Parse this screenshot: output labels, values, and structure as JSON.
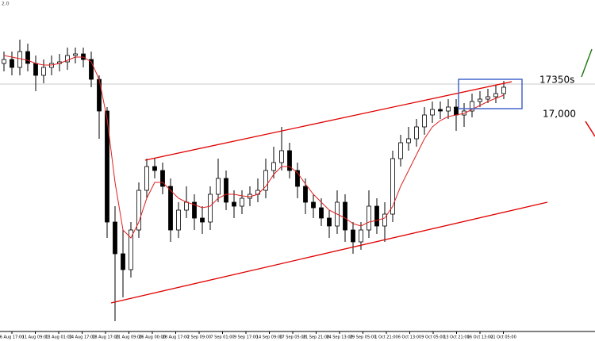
{
  "chart_data": {
    "type": "candlestick",
    "top_label": "2.0",
    "annotations": [
      "17350s",
      "17,000"
    ],
    "ylim": [
      14310,
      18410
    ],
    "x_labels": [
      "6 Aug 17:00",
      "11 Aug 09:00",
      "13 Aug 01:00",
      "14 Aug 17:00",
      "18 Aug 17:00",
      "21 Aug 09:00",
      "26 Aug 00:00",
      "28 Aug 17:00",
      "2 Sep 09:00",
      "7 Sep 01:00",
      "9 Sep 17:00",
      "14 Sep 09:00",
      "17 Sep 05:00",
      "21 Sep 21:00",
      "24 Sep 13:00",
      "29 Sep 05:00",
      "1 Oct 21:00",
      "6 Oct 13:00",
      "9 Oct 05:00",
      "13 Oct 21:00",
      "16 Oct 13:00",
      "21 Oct 05:00"
    ],
    "open": [
      17610,
      17660,
      17560,
      17760,
      17610,
      17460,
      17560,
      17610,
      17630,
      17710,
      17730,
      17660,
      17410,
      17010,
      15610,
      15210,
      15010,
      15510,
      16010,
      16310,
      16260,
      16060,
      15510,
      15760,
      15860,
      15660,
      15610,
      15960,
      16160,
      15860,
      15810,
      15910,
      15960,
      16010,
      16260,
      16360,
      16510,
      16260,
      16060,
      15860,
      15790,
      15660,
      15560,
      15860,
      15510,
      15360,
      15510,
      15810,
      15560,
      15710,
      16410,
      16610,
      16660,
      16810,
      16960,
      17030,
      17010,
      17060,
      16960,
      17010,
      17130,
      17160,
      17190,
      17230
    ],
    "high": [
      17760,
      17760,
      17910,
      17860,
      17710,
      17660,
      17710,
      17730,
      17810,
      17810,
      17810,
      17760,
      17460,
      17060,
      15810,
      15510,
      15610,
      16110,
      16410,
      16410,
      16360,
      16160,
      15860,
      16060,
      15960,
      15810,
      16060,
      16410,
      16260,
      16010,
      16010,
      16060,
      16160,
      16410,
      16560,
      16810,
      16610,
      16360,
      16160,
      15960,
      15910,
      15760,
      16010,
      15960,
      15610,
      15610,
      16010,
      15910,
      15860,
      16510,
      16710,
      16810,
      16910,
      17060,
      17130,
      17130,
      17160,
      17160,
      17110,
      17230,
      17260,
      17290,
      17330,
      17390
    ],
    "low": [
      17510,
      17460,
      17460,
      17510,
      17260,
      17360,
      17460,
      17510,
      17530,
      17610,
      17560,
      17310,
      16660,
      15410,
      14360,
      14660,
      14910,
      15410,
      15910,
      16160,
      15960,
      15360,
      15410,
      15660,
      15510,
      15460,
      15510,
      15860,
      15760,
      15660,
      15710,
      15810,
      15860,
      15910,
      16160,
      16260,
      16160,
      15910,
      15710,
      15660,
      15560,
      15410,
      15460,
      15360,
      15210,
      15260,
      15410,
      15460,
      15360,
      15610,
      16310,
      16510,
      16560,
      16710,
      16860,
      16910,
      16910,
      16760,
      16810,
      16930,
      17060,
      17110,
      17110,
      17160
    ],
    "close": [
      17660,
      17560,
      17760,
      17610,
      17460,
      17560,
      17610,
      17630,
      17710,
      17730,
      17660,
      17410,
      17010,
      15610,
      15210,
      15010,
      15510,
      16010,
      16310,
      16260,
      16060,
      15510,
      15760,
      15860,
      15660,
      15610,
      15960,
      16160,
      15860,
      15810,
      15910,
      15960,
      16010,
      16260,
      16360,
      16510,
      16260,
      16060,
      15860,
      15790,
      15660,
      15560,
      15860,
      15510,
      15360,
      15510,
      15810,
      15560,
      15710,
      16410,
      16610,
      16660,
      16810,
      16960,
      17030,
      17010,
      17060,
      16960,
      17010,
      17130,
      17160,
      17190,
      17230,
      17310
    ],
    "ma": [
      17710,
      17690,
      17670,
      17650,
      17610,
      17590,
      17590,
      17610,
      17650,
      17690,
      17690,
      17630,
      17410,
      16910,
      16110,
      15510,
      15410,
      15610,
      15910,
      16110,
      16110,
      16010,
      15910,
      15860,
      15830,
      15790,
      15810,
      15910,
      15960,
      15960,
      15940,
      15930,
      15960,
      16060,
      16210,
      16310,
      16310,
      16230,
      16090,
      15960,
      15860,
      15760,
      15710,
      15660,
      15590,
      15560,
      15610,
      15630,
      15660,
      15810,
      16060,
      16260,
      16460,
      16660,
      16810,
      16890,
      16940,
      16960,
      16980,
      17030,
      17080,
      17130,
      17170,
      17210
    ],
    "ma_color": "#e02020",
    "up_color": "#ffffff",
    "down_color": "#000000"
  }
}
